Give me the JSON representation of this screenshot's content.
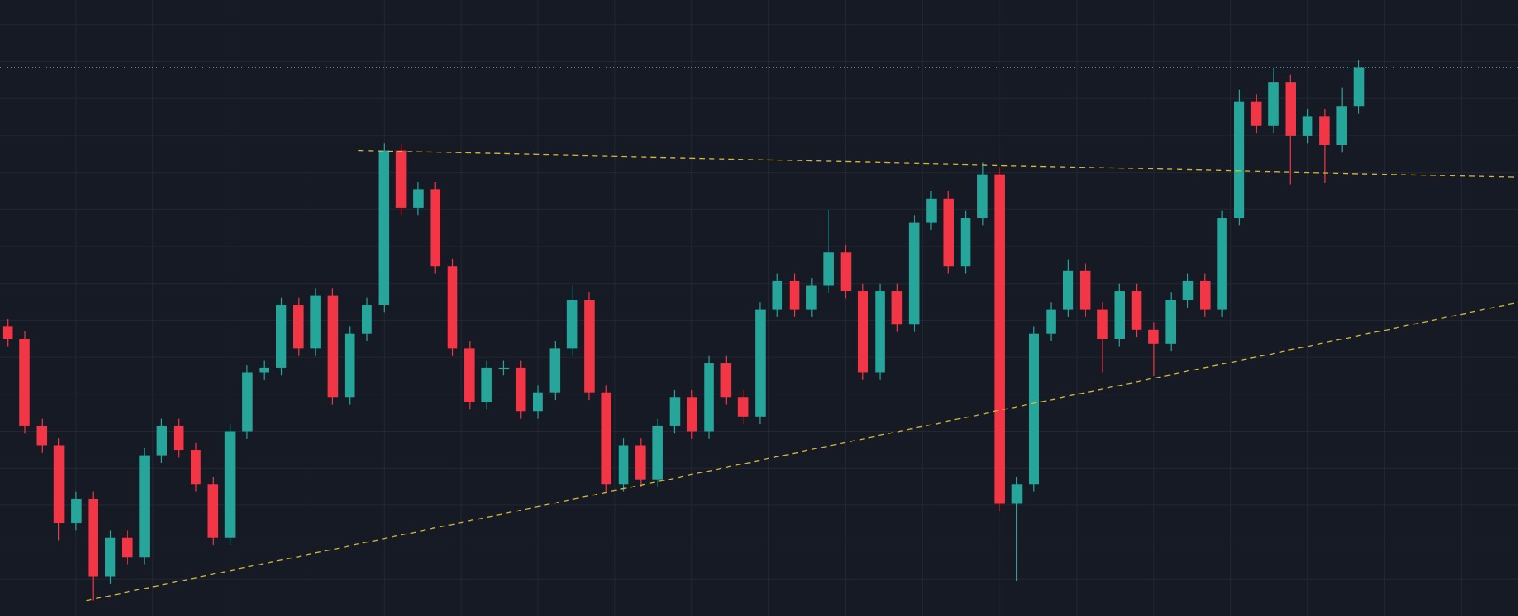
{
  "chart_data": {
    "type": "candlestick",
    "x": [
      0,
      1,
      2,
      3,
      4,
      5,
      6,
      7,
      8,
      9,
      10,
      11,
      12,
      13,
      14,
      15,
      16,
      17,
      18,
      19,
      20,
      21,
      22,
      23,
      24,
      25,
      26,
      27,
      28,
      29,
      30,
      31,
      32,
      33,
      34,
      35,
      36,
      37,
      38,
      39,
      40,
      41,
      42,
      43,
      44,
      45,
      46,
      47,
      48,
      49,
      50,
      51,
      52,
      53,
      54,
      55,
      56,
      57,
      58,
      59,
      60,
      61,
      62,
      63,
      64,
      65,
      66,
      67,
      68,
      69,
      70,
      71,
      72,
      73,
      74,
      75,
      76,
      77,
      78,
      79
    ],
    "open": [
      47.0,
      45.0,
      30.8,
      27.7,
      15.1,
      19.0,
      6.4,
      12.7,
      9.6,
      26.1,
      30.8,
      26.9,
      21.4,
      12.7,
      30.0,
      39.5,
      40.3,
      50.5,
      43.4,
      52.0,
      35.5,
      45.8,
      50.5,
      75.6,
      66.2,
      69.3,
      56.8,
      43.4,
      34.7,
      40.3,
      40.3,
      33.2,
      36.3,
      43.4,
      51.3,
      36.3,
      21.4,
      27.7,
      22.2,
      30.8,
      35.5,
      30.0,
      41.0,
      35.5,
      32.4,
      49.7,
      54.4,
      49.7,
      53.6,
      59.1,
      52.8,
      39.5,
      52.8,
      47.3,
      63.8,
      67.8,
      56.8,
      64.6,
      71.7,
      18.2,
      21.4,
      45.8,
      49.7,
      56.0,
      49.7,
      45.0,
      52.8,
      46.5,
      44.2,
      51.3,
      54.4,
      49.7,
      64.6,
      83.5,
      79.6,
      86.6,
      78.0,
      81.1,
      76.4,
      82.7
    ],
    "high": [
      48.2,
      46.2,
      32.0,
      28.9,
      20.2,
      20.2,
      13.9,
      13.9,
      27.3,
      32.0,
      32.0,
      28.1,
      22.6,
      31.2,
      40.7,
      41.5,
      51.7,
      51.7,
      53.2,
      53.2,
      47.0,
      51.7,
      76.8,
      76.8,
      70.5,
      70.5,
      58.0,
      44.6,
      41.5,
      41.5,
      41.5,
      37.5,
      44.6,
      53.6,
      52.5,
      37.5,
      28.9,
      28.9,
      32.0,
      36.7,
      36.7,
      42.2,
      42.2,
      36.7,
      50.9,
      55.6,
      55.6,
      54.8,
      65.9,
      60.3,
      54.0,
      54.0,
      54.0,
      65.0,
      69.0,
      69.0,
      65.8,
      73.6,
      72.9,
      22.6,
      47.0,
      50.9,
      57.9,
      57.2,
      50.9,
      54.0,
      54.0,
      47.7,
      52.5,
      55.6,
      55.6,
      65.8,
      85.5,
      84.7,
      89.0,
      87.8,
      82.3,
      82.3,
      85.8,
      90.2
    ],
    "low": [
      43.8,
      29.6,
      26.5,
      12.3,
      13.9,
      2.5,
      5.2,
      8.4,
      8.4,
      24.9,
      25.7,
      20.2,
      11.5,
      11.5,
      28.8,
      38.3,
      39.1,
      42.2,
      42.2,
      34.3,
      34.3,
      44.6,
      49.3,
      65.0,
      65.0,
      55.6,
      42.2,
      33.5,
      33.5,
      39.1,
      32.0,
      32.0,
      35.1,
      42.2,
      35.1,
      20.2,
      20.2,
      21.0,
      21.0,
      29.6,
      28.8,
      28.8,
      34.3,
      31.2,
      31.2,
      48.5,
      48.5,
      48.5,
      52.4,
      51.6,
      38.3,
      38.3,
      46.1,
      46.1,
      62.6,
      55.6,
      55.6,
      63.4,
      17.0,
      5.7,
      20.2,
      44.6,
      48.5,
      48.5,
      39.5,
      43.8,
      45.3,
      39.0,
      43.0,
      50.1,
      48.5,
      48.5,
      63.4,
      78.4,
      78.4,
      70.0,
      76.8,
      70.3,
      75.2,
      81.5
    ],
    "close": [
      45.0,
      30.8,
      27.7,
      15.1,
      19.0,
      6.4,
      12.7,
      9.6,
      26.1,
      30.8,
      26.9,
      21.4,
      12.7,
      30.0,
      39.5,
      40.3,
      50.5,
      43.4,
      52.0,
      35.5,
      45.8,
      50.5,
      75.6,
      66.2,
      69.3,
      56.8,
      43.4,
      34.7,
      40.3,
      40.3,
      33.2,
      36.3,
      43.4,
      51.3,
      36.3,
      21.4,
      27.7,
      22.2,
      30.8,
      35.5,
      30.0,
      41.0,
      35.5,
      32.4,
      49.7,
      54.4,
      49.7,
      53.6,
      59.1,
      52.8,
      39.5,
      52.8,
      47.3,
      63.8,
      67.8,
      56.8,
      64.6,
      71.7,
      18.2,
      21.4,
      45.8,
      49.7,
      56.0,
      49.7,
      45.0,
      52.8,
      46.5,
      44.2,
      51.3,
      54.4,
      49.7,
      64.6,
      83.5,
      79.6,
      86.6,
      78.0,
      81.1,
      76.4,
      82.7,
      89.0
    ],
    "up_color": "#26a69a",
    "down_color": "#f23645",
    "xlim": [
      -0.45,
      88.3
    ],
    "ylim": [
      0,
      100
    ],
    "xticks": [
      4,
      8.5,
      13,
      17.5,
      22,
      26.5,
      31,
      35.5,
      40,
      44.5,
      49,
      53.5,
      58,
      62.5,
      67,
      71.5,
      76,
      80.5,
      85
    ],
    "yticks": [
      6,
      12,
      18,
      24,
      30,
      36,
      42,
      48,
      54,
      60,
      66,
      72,
      78,
      84,
      90,
      96
    ],
    "grid": true,
    "trendlines": [
      {
        "x": [
          20.5,
          88.3
        ],
        "y": [
          75.6,
          71.2
        ],
        "color": "#d4b83a"
      },
      {
        "x": [
          4.6,
          88.3
        ],
        "y": [
          2.5,
          50.9
        ],
        "color": "#d4b83a"
      }
    ],
    "price_line": {
      "value": 89.0,
      "color": "#2a9d8f"
    }
  }
}
